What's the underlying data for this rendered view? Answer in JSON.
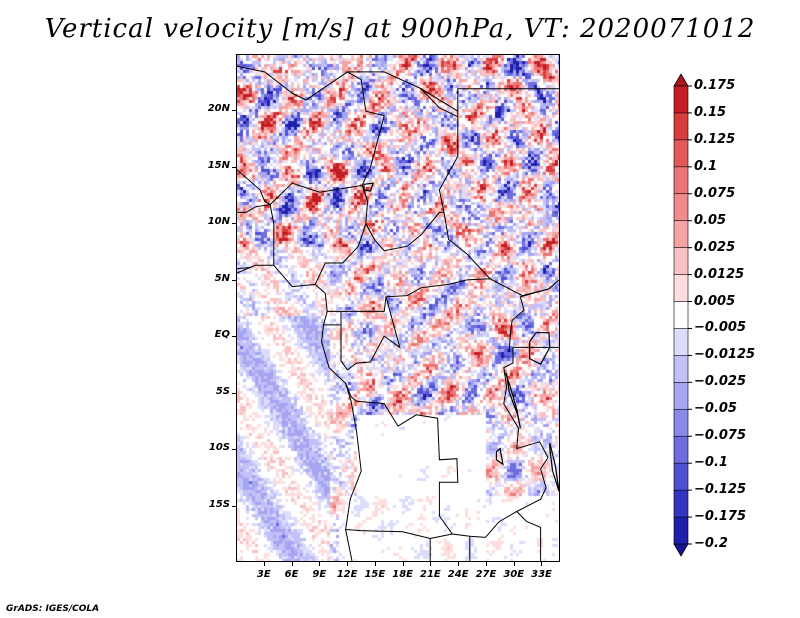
{
  "title": "Vertical velocity [m/s] at 900hPa, VT: 2020071012",
  "credit": "GrADS: IGES/COLA",
  "map": {
    "lon_range": [
      0,
      35
    ],
    "lat_range": [
      -20,
      25
    ],
    "y_ticks": [
      {
        "lat": 20,
        "label": "20N"
      },
      {
        "lat": 15,
        "label": "15N"
      },
      {
        "lat": 10,
        "label": "10N"
      },
      {
        "lat": 5,
        "label": "5N"
      },
      {
        "lat": 0,
        "label": "EQ"
      },
      {
        "lat": -5,
        "label": "5S"
      },
      {
        "lat": -10,
        "label": "10S"
      },
      {
        "lat": -15,
        "label": "15S"
      }
    ],
    "x_ticks": [
      {
        "lon": 3,
        "label": "3E"
      },
      {
        "lon": 6,
        "label": "6E"
      },
      {
        "lon": 9,
        "label": "9E"
      },
      {
        "lon": 12,
        "label": "12E"
      },
      {
        "lon": 15,
        "label": "15E"
      },
      {
        "lon": 18,
        "label": "18E"
      },
      {
        "lon": 21,
        "label": "21E"
      },
      {
        "lon": 24,
        "label": "24E"
      },
      {
        "lon": 27,
        "label": "27E"
      },
      {
        "lon": 30,
        "label": "30E"
      },
      {
        "lon": 33,
        "label": "33E"
      }
    ],
    "field": "vertical velocity",
    "units": "m/s",
    "level": "900hPa"
  },
  "colorbar": {
    "levels": [
      "0.175",
      "0.15",
      "0.125",
      "0.1",
      "0.075",
      "0.05",
      "0.025",
      "0.0125",
      "0.005",
      "−0.005",
      "−0.0125",
      "−0.025",
      "−0.05",
      "−0.075",
      "−0.1",
      "−0.125",
      "−0.175",
      "−0.2"
    ],
    "colors": [
      "#b0171a",
      "#c41e24",
      "#d73d3d",
      "#e35858",
      "#ec7474",
      "#f18a8a",
      "#f5a3a3",
      "#f9c1c1",
      "#fcdede",
      "#ffffff",
      "#dcdcfc",
      "#c1c1f7",
      "#a5a5f1",
      "#8a8aeb",
      "#6d6de0",
      "#5050d2",
      "#3434c0",
      "#1f1fae",
      "#14149a"
    ],
    "extend": "both"
  }
}
